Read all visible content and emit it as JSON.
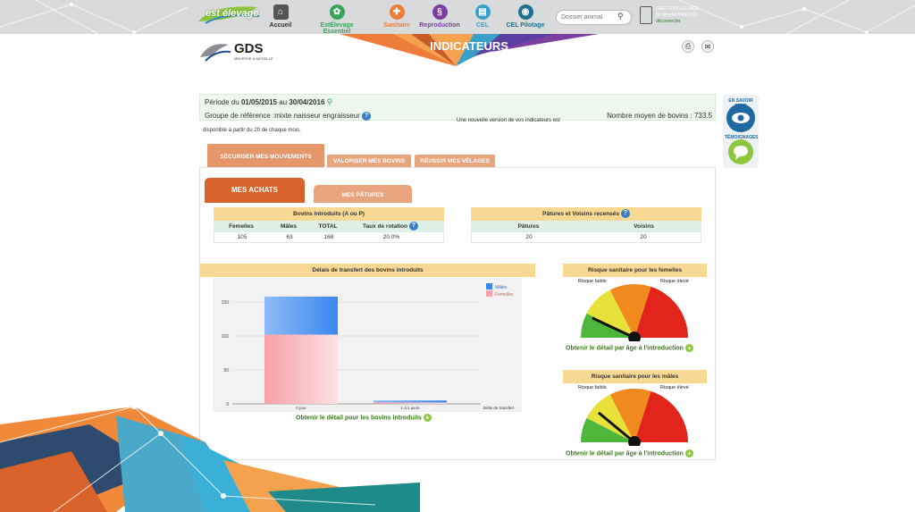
{
  "nav": {
    "logo": "est élevage",
    "items": [
      {
        "label": "Accueil",
        "color": "#555555",
        "icon": "home-icon"
      },
      {
        "label": "EstÉlevage Essentiel",
        "color": "#3aa55a",
        "icon": "leaf-icon"
      },
      {
        "label": "Sanitaire",
        "color": "#ef7d3a",
        "icon": "medical-cross-icon"
      },
      {
        "label": "Reproduction",
        "color": "#7b3fa0",
        "icon": "dna-icon"
      },
      {
        "label": "CEL",
        "color": "#3aa0c8",
        "icon": "clipboard-icon"
      },
      {
        "label": "CEL Pilotage",
        "color": "#1f6f8f",
        "icon": "dashboard-icon"
      }
    ],
    "search_placeholder": "Dossier animal",
    "user": {
      "line1": "GAEC ESTELEVAGE",
      "line2": "N° cheptel 54001001",
      "logout": "déconnecter"
    }
  },
  "header": {
    "title": "INDICATEURS",
    "gds_logo": "GDS",
    "gds_sub": "MEURTHE & MOSELLE"
  },
  "period": {
    "prefix": "Période du",
    "start": "01/05/2015",
    "mid": "au",
    "end": "30/04/2016",
    "group": "Groupe de référence :mixte naisseur engraisseur",
    "avg": "Nombre moyen de bovins : 733.5",
    "notice1": "Une nouvelle version de vos indicateurs est",
    "notice2": "disponible à partir du 20 de chaque mois."
  },
  "side": {
    "badge1": "EN SAVOIR PLUS",
    "badge2": "TÉMOIGNAGES"
  },
  "tabs": {
    "main": [
      "SÉCURISER MES MOUVEMENTS",
      "VALORISER MES BOVINS",
      "RÉUSSIR MES VÊLAGES"
    ],
    "sub": [
      "MES ACHATS",
      "MES PÂTURES"
    ]
  },
  "table_bovins": {
    "title": "Bovins Introduits (A ou P)",
    "headers": [
      "Femelles",
      "Mâles",
      "TOTAL",
      "Taux de rotation"
    ],
    "values": [
      "105",
      "63",
      "168",
      "20.0%"
    ]
  },
  "table_patures": {
    "title": "Pâtures et Voisins recensés",
    "headers": [
      "Pâtures",
      "Voisins"
    ],
    "values": [
      "20",
      "20"
    ]
  },
  "chart_data": {
    "type": "bar",
    "title": "Délais de transfert des bovins introduits",
    "categories": [
      "0 jour",
      "1 à 2 jours"
    ],
    "xlabel": "Délai de transfert",
    "ylim": [
      0,
      175
    ],
    "yticks": [
      "0",
      "50",
      "100",
      "150"
    ],
    "stacked": true,
    "legend_placement": "top-right",
    "series": [
      {
        "name": "Mâles",
        "values": [
          56,
          3
        ],
        "color": "#3a86f0"
      },
      {
        "name": "Femelles",
        "values": [
          102,
          2
        ],
        "color": "#f7a0a7"
      }
    ],
    "link": "Obtenir le détail pour les bovins introduits"
  },
  "gauges": [
    {
      "title": "Risque sanitaire pour les femelles",
      "low": "Risque faible",
      "high": "Risque élevé",
      "level": 0.14,
      "link": "Obtenir le détail par âge à l'introduction"
    },
    {
      "title": "Risque sanitaire pour les mâles",
      "low": "Risque faible",
      "high": "Risque élevé",
      "level": 0.22,
      "link": "Obtenir le détail par âge à l'introduction"
    }
  ]
}
